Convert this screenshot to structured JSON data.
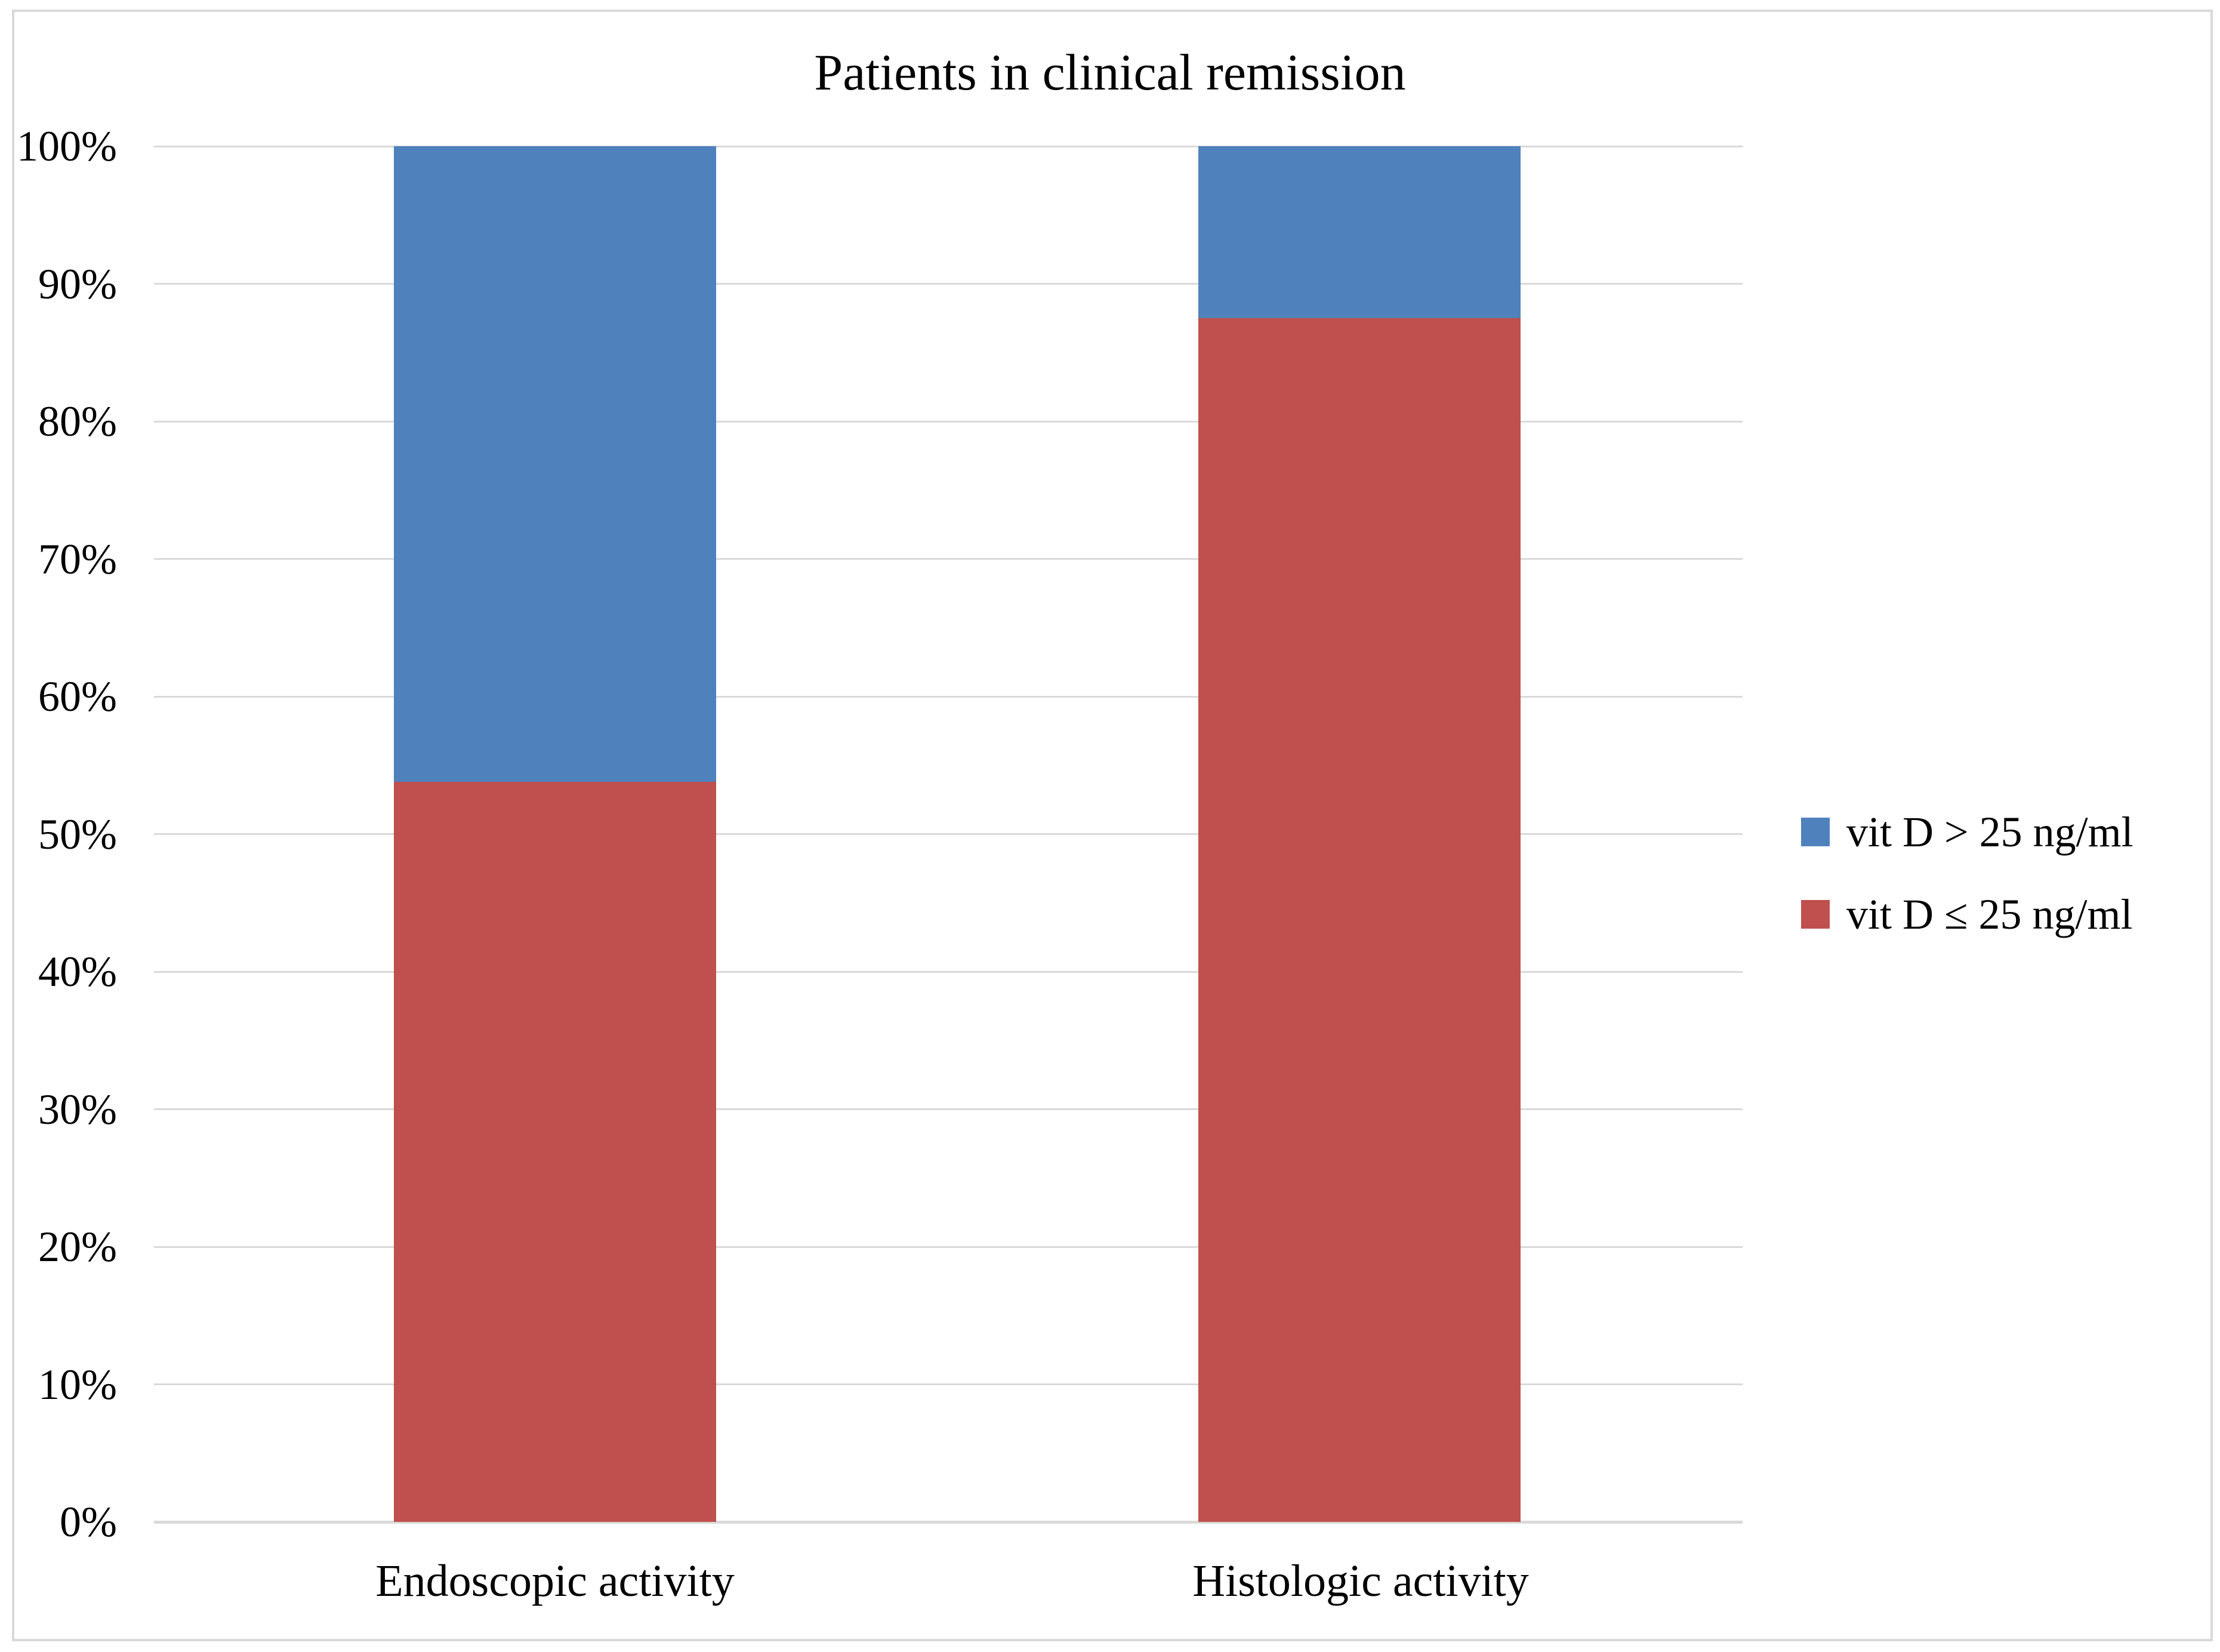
{
  "title": "Patients in clinical remission",
  "y_axis": {
    "tick_labels": [
      "100%",
      "90%",
      "80%",
      "70%",
      "60%",
      "50%",
      "40%",
      "30%",
      "20%",
      "10%",
      "0%"
    ]
  },
  "x_axis": {
    "labels": [
      "Endoscopic activity",
      "Histologic activity"
    ]
  },
  "legend": {
    "position": "right",
    "items": [
      {
        "label": "vit D > 25 ng/ml",
        "color": "#4F81BD"
      },
      {
        "label": "vit D ≤ 25 ng/ml",
        "color": "#C0504D"
      }
    ]
  },
  "colors": {
    "series_blue": "#4F81BD",
    "series_red": "#C0504D",
    "gridline": "#D9D9D9",
    "axis_line": "#D9D9D9",
    "frame_border": "#D9D9D9",
    "background": "#FFFFFF",
    "text": "#000000"
  },
  "chart_data": {
    "type": "bar",
    "stacked": true,
    "title": "Patients in clinical remission",
    "categories": [
      "Endoscopic activity",
      "Histologic activity"
    ],
    "series": [
      {
        "name": "vit D ≤ 25 ng/ml",
        "color": "#C0504D",
        "values": [
          53.8,
          87.5
        ]
      },
      {
        "name": "vit D > 25 ng/ml",
        "color": "#4F81BD",
        "values": [
          46.2,
          12.5
        ]
      }
    ],
    "ylim": [
      0,
      100
    ],
    "y_tick_step": 10,
    "y_tick_format": "percent",
    "grid": true,
    "legend_position": "right",
    "bar_order_bottom_to_top": [
      "vit D ≤ 25 ng/ml",
      "vit D > 25 ng/ml"
    ]
  }
}
